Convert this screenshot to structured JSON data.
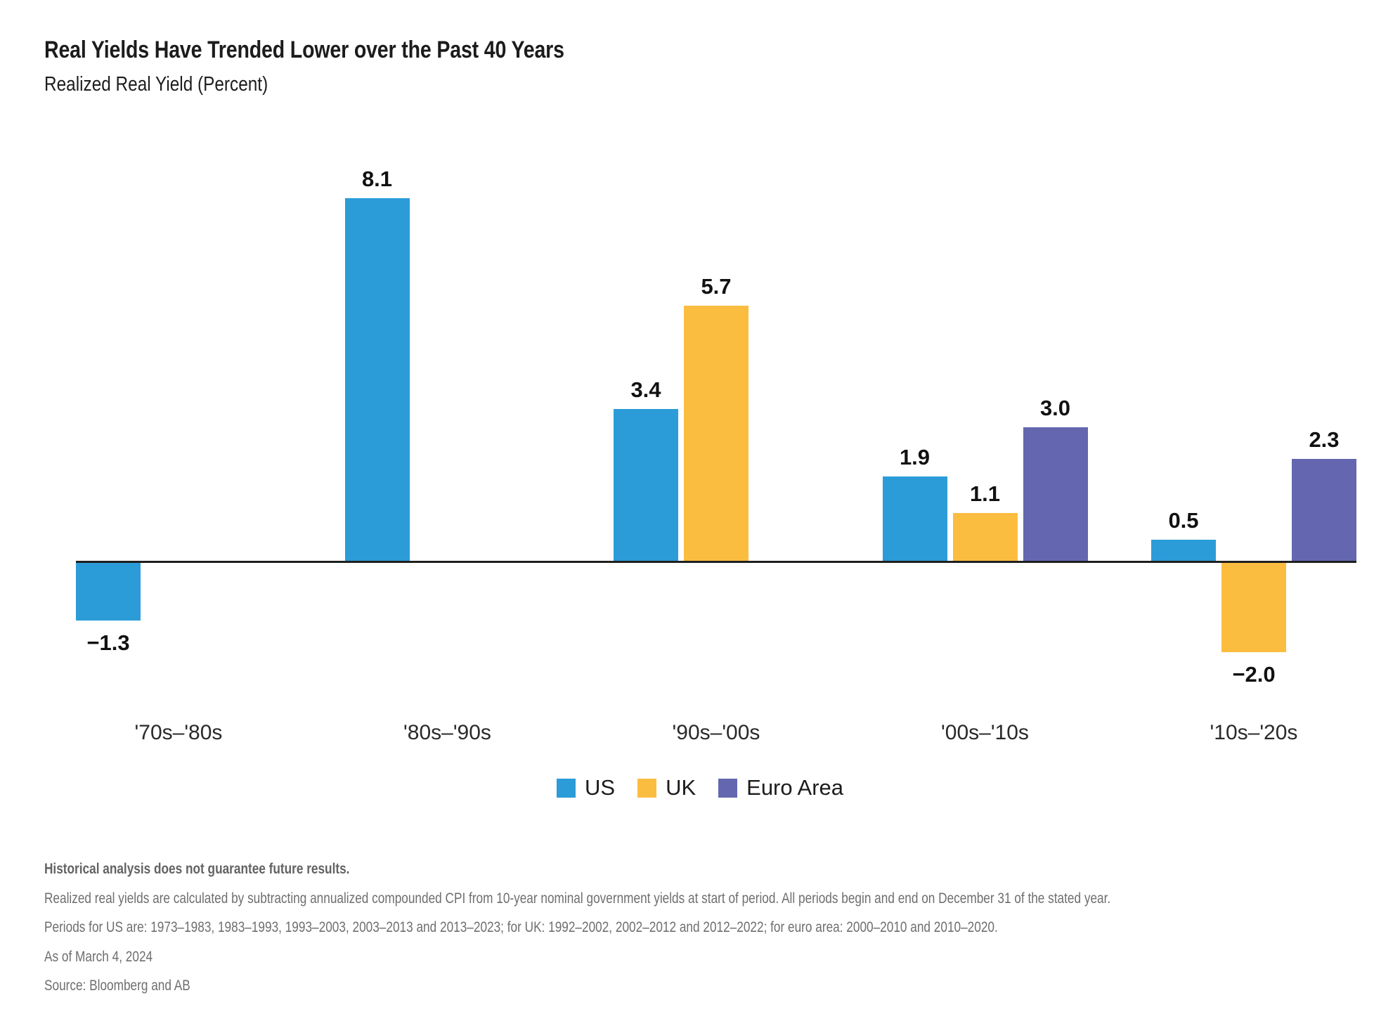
{
  "page": {
    "title": "Real Yields Have Trended Lower over the Past 40 Years",
    "subtitle": "Realized Real Yield (Percent)"
  },
  "chart_data": {
    "type": "bar",
    "title": "Real Yields Have Trended Lower over the Past 40 Years",
    "subtitle": "Realized Real Yield (Percent)",
    "categories": [
      "'70s–'80s",
      "'80s–'90s",
      "'90s–'00s",
      "'00s–'10s",
      "'10s–'20s"
    ],
    "series": [
      {
        "name": "US",
        "color": "#2B9CD8",
        "values": [
          -1.3,
          8.1,
          3.4,
          1.9,
          0.5
        ]
      },
      {
        "name": "UK",
        "color": "#FBBD40",
        "values": [
          null,
          null,
          5.7,
          1.1,
          -2.0
        ]
      },
      {
        "name": "Euro Area",
        "color": "#6467AF",
        "values": [
          null,
          null,
          null,
          3.0,
          2.3
        ]
      }
    ],
    "xlabel": "",
    "ylabel": "Realized Real Yield (Percent)",
    "ylim": [
      -2.6,
      8.6
    ],
    "grid": false,
    "legend_position": "bottom",
    "value_labels": true,
    "axis_color": "#1f1f1f",
    "value_label_color": "#111111"
  },
  "footnotes": {
    "disclaimer": "Historical analysis does not guarantee future results.",
    "methodology": "Realized real yields are calculated by subtracting annualized compounded CPI from 10-year nominal government yields at start of period. All periods begin and end on December 31 of the stated year.",
    "periods": "Periods for US are: 1973–1983, 1983–1993, 1993–2003, 2003–2013 and 2013–2023; for UK: 1992–2002, 2002–2012 and 2012–2022; for euro area: 2000–2010 and 2010–2020.",
    "as_of": "As of March 4, 2024",
    "source": "Source: Bloomberg and AB"
  }
}
